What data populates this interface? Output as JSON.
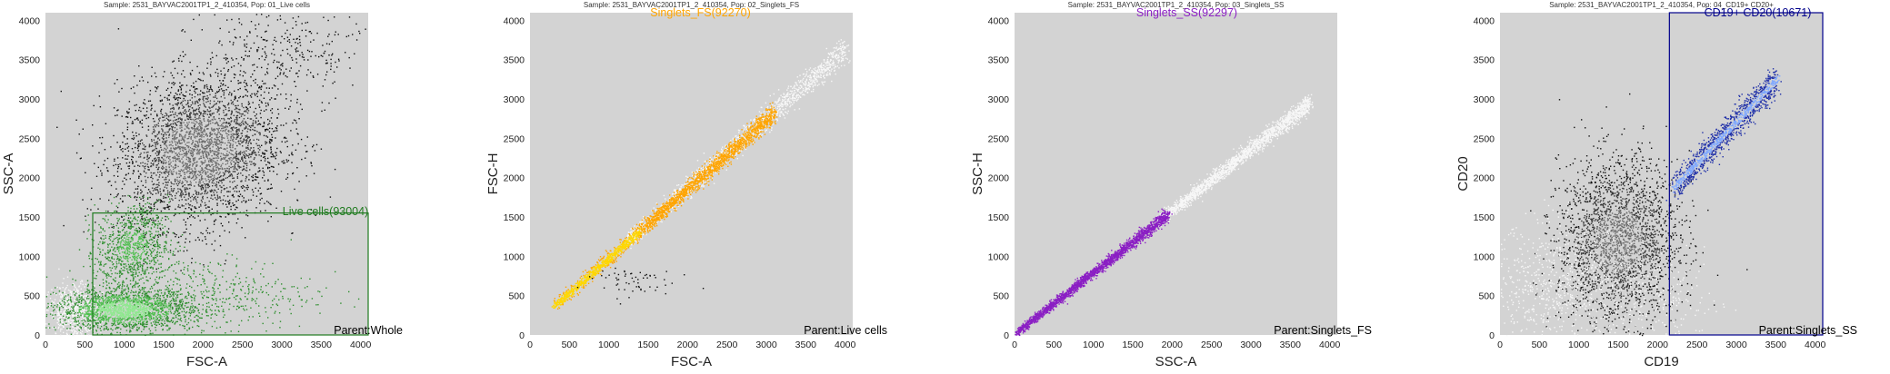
{
  "colors": {
    "plot_bg": "#d3d3d3",
    "ungated_white": "#f7f7f7",
    "ungated_dark": "#111111",
    "green": "#2f8f2f",
    "green_light": "#8fe88f",
    "orange": "#ffa500",
    "yellow": "#ffd700",
    "purple": "#8b1fc4",
    "blue": "#1f2fa8",
    "blue_light": "#7fa8ff",
    "gate_green": "#1e7a1e",
    "gate_blue": "#00008b"
  },
  "chart_data": [
    {
      "type": "scatter",
      "subtitle": "Sample: 2531_BAYVAC2001TP1_2_410354, Pop: 01_Live cells",
      "xlabel": "FSC-A",
      "ylabel": "SSC-A",
      "xlim": [
        0,
        4096
      ],
      "ylim": [
        0,
        4096
      ],
      "xticks": [
        "0",
        "500",
        "1000",
        "1500",
        "2000",
        "2500",
        "3000",
        "3500",
        "4000"
      ],
      "yticks": [
        "0",
        "500",
        "1000",
        "1500",
        "2000",
        "2500",
        "3000",
        "3500",
        "4000"
      ],
      "gate_label": "Live cells(93004)",
      "gate_color": "#1e7a1e",
      "gate": {
        "shape": "rect",
        "x": [
          600,
          4096
        ],
        "y": [
          0,
          1550
        ]
      },
      "parent_label": "Parent:Whole",
      "populations": [
        {
          "name": "ungated",
          "description": "large dark cloud",
          "center": [
            1900,
            2300
          ],
          "spread": [
            550,
            500
          ],
          "color": "#111111"
        },
        {
          "name": "gated",
          "description": "green lymphocyte cloud",
          "center": [
            900,
            350
          ],
          "spread": [
            450,
            200
          ],
          "color": "#2f8f2f"
        },
        {
          "name": "gated",
          "description": "green upper cluster",
          "center": [
            1100,
            1100
          ],
          "spread": [
            200,
            250
          ],
          "color": "#2f8f2f"
        }
      ]
    },
    {
      "type": "scatter",
      "subtitle": "Sample: 2531_BAYVAC2001TP1_2_410354, Pop: 02_Singlets_FS",
      "xlabel": "FSC-A",
      "ylabel": "FSC-H",
      "xlim": [
        0,
        4096
      ],
      "ylim": [
        0,
        4096
      ],
      "xticks": [
        "0",
        "500",
        "1000",
        "1500",
        "2000",
        "2500",
        "3000",
        "3500",
        "4000"
      ],
      "yticks": [
        "0",
        "500",
        "1000",
        "1500",
        "2000",
        "2500",
        "3000",
        "3500",
        "4000"
      ],
      "gate_label": "Singlets_FS(92270)",
      "gate_color": "#ffa500",
      "parent_label": "Parent:Live cells",
      "populations": [
        {
          "name": "gated",
          "description": "orange/yellow diagonal",
          "x_range": [
            300,
            2800
          ],
          "slope": 0.88,
          "color": "#ffa500"
        },
        {
          "name": "ungated",
          "description": "white diagonal",
          "x_range": [
            1500,
            4096
          ],
          "slope": 0.88,
          "color": "#f7f7f7"
        }
      ]
    },
    {
      "type": "scatter",
      "subtitle": "Sample: 2531_BAYVAC2001TP1_2_410354, Pop: 03_Singlets_SS",
      "xlabel": "SSC-A",
      "ylabel": "SSC-H",
      "xlim": [
        0,
        4096
      ],
      "ylim": [
        0,
        4096
      ],
      "xticks": [
        "0",
        "500",
        "1000",
        "1500",
        "2000",
        "2500",
        "3000",
        "3500",
        "4000"
      ],
      "yticks": [
        "0",
        "500",
        "1000",
        "1500",
        "2000",
        "2500",
        "3000",
        "3500",
        "4000"
      ],
      "gate_label": "Singlets_SS(92297)",
      "gate_color": "#8b1fc4",
      "parent_label": "Parent:Singlets_FS",
      "populations": [
        {
          "name": "gated",
          "description": "purple diagonal",
          "x_range": [
            0,
            1900
          ],
          "slope": 0.8,
          "color": "#8b1fc4"
        },
        {
          "name": "ungated",
          "description": "white diagonal",
          "x_range": [
            1800,
            3700
          ],
          "slope": 0.8,
          "color": "#f7f7f7"
        }
      ]
    },
    {
      "type": "scatter",
      "subtitle": "Sample: 2531_BAYVAC2001TP1_2_410354, Pop: 04_CD19+ CD20+",
      "xlabel": "CD19",
      "ylabel": "CD20",
      "xlim": [
        0,
        4096
      ],
      "ylim": [
        0,
        4096
      ],
      "xticks": [
        "0",
        "500",
        "1000",
        "1500",
        "2000",
        "2500",
        "3000",
        "3500",
        "4000"
      ],
      "yticks": [
        "0",
        "500",
        "1000",
        "1500",
        "2000",
        "2500",
        "3000",
        "3500",
        "4000"
      ],
      "gate_label": "CD19+ CD20(10671)",
      "gate_color": "#00008b",
      "gate": {
        "shape": "rect",
        "x": [
          2150,
          4096
        ],
        "y": [
          0,
          4096
        ]
      },
      "parent_label": "Parent:Singlets_SS",
      "populations": [
        {
          "name": "ungated",
          "description": "dark CD19- cloud",
          "center": [
            1500,
            1200
          ],
          "spread": [
            350,
            550
          ],
          "color": "#111111"
        },
        {
          "name": "gated",
          "description": "blue CD19+CD20+ diagonal",
          "x_range": [
            2200,
            3500
          ],
          "color": "#1f2fa8"
        }
      ]
    }
  ]
}
